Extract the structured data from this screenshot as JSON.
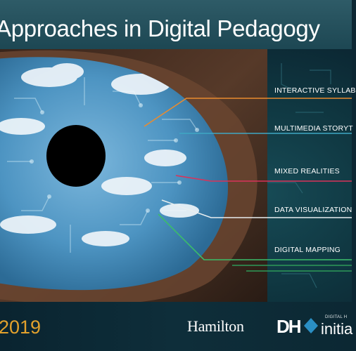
{
  "title": "Approaches in Digital Pedagogy",
  "labels": [
    {
      "text": "INTERACTIVE SYLLAB",
      "color": "#e98b2f"
    },
    {
      "text": "MULTIMEDIA STORYT",
      "color": "#3ea7c4"
    },
    {
      "text": "MIXED REALITIES",
      "color": "#d9335a"
    },
    {
      "text": "DATA VISUALIZATION",
      "color": "#ffffff"
    },
    {
      "text": "DIGITAL MAPPING",
      "color": "#3bbd6a"
    }
  ],
  "footer": {
    "year": "2019",
    "institution": "Hamilton",
    "logo_letters": "DH",
    "logo_small_text": "DIGITAL H",
    "logo_big_text": "initia"
  },
  "colors": {
    "accent_orange": "#e2a12c",
    "teal_band": "#1d4753",
    "eye_blue": "#3f88b8"
  }
}
